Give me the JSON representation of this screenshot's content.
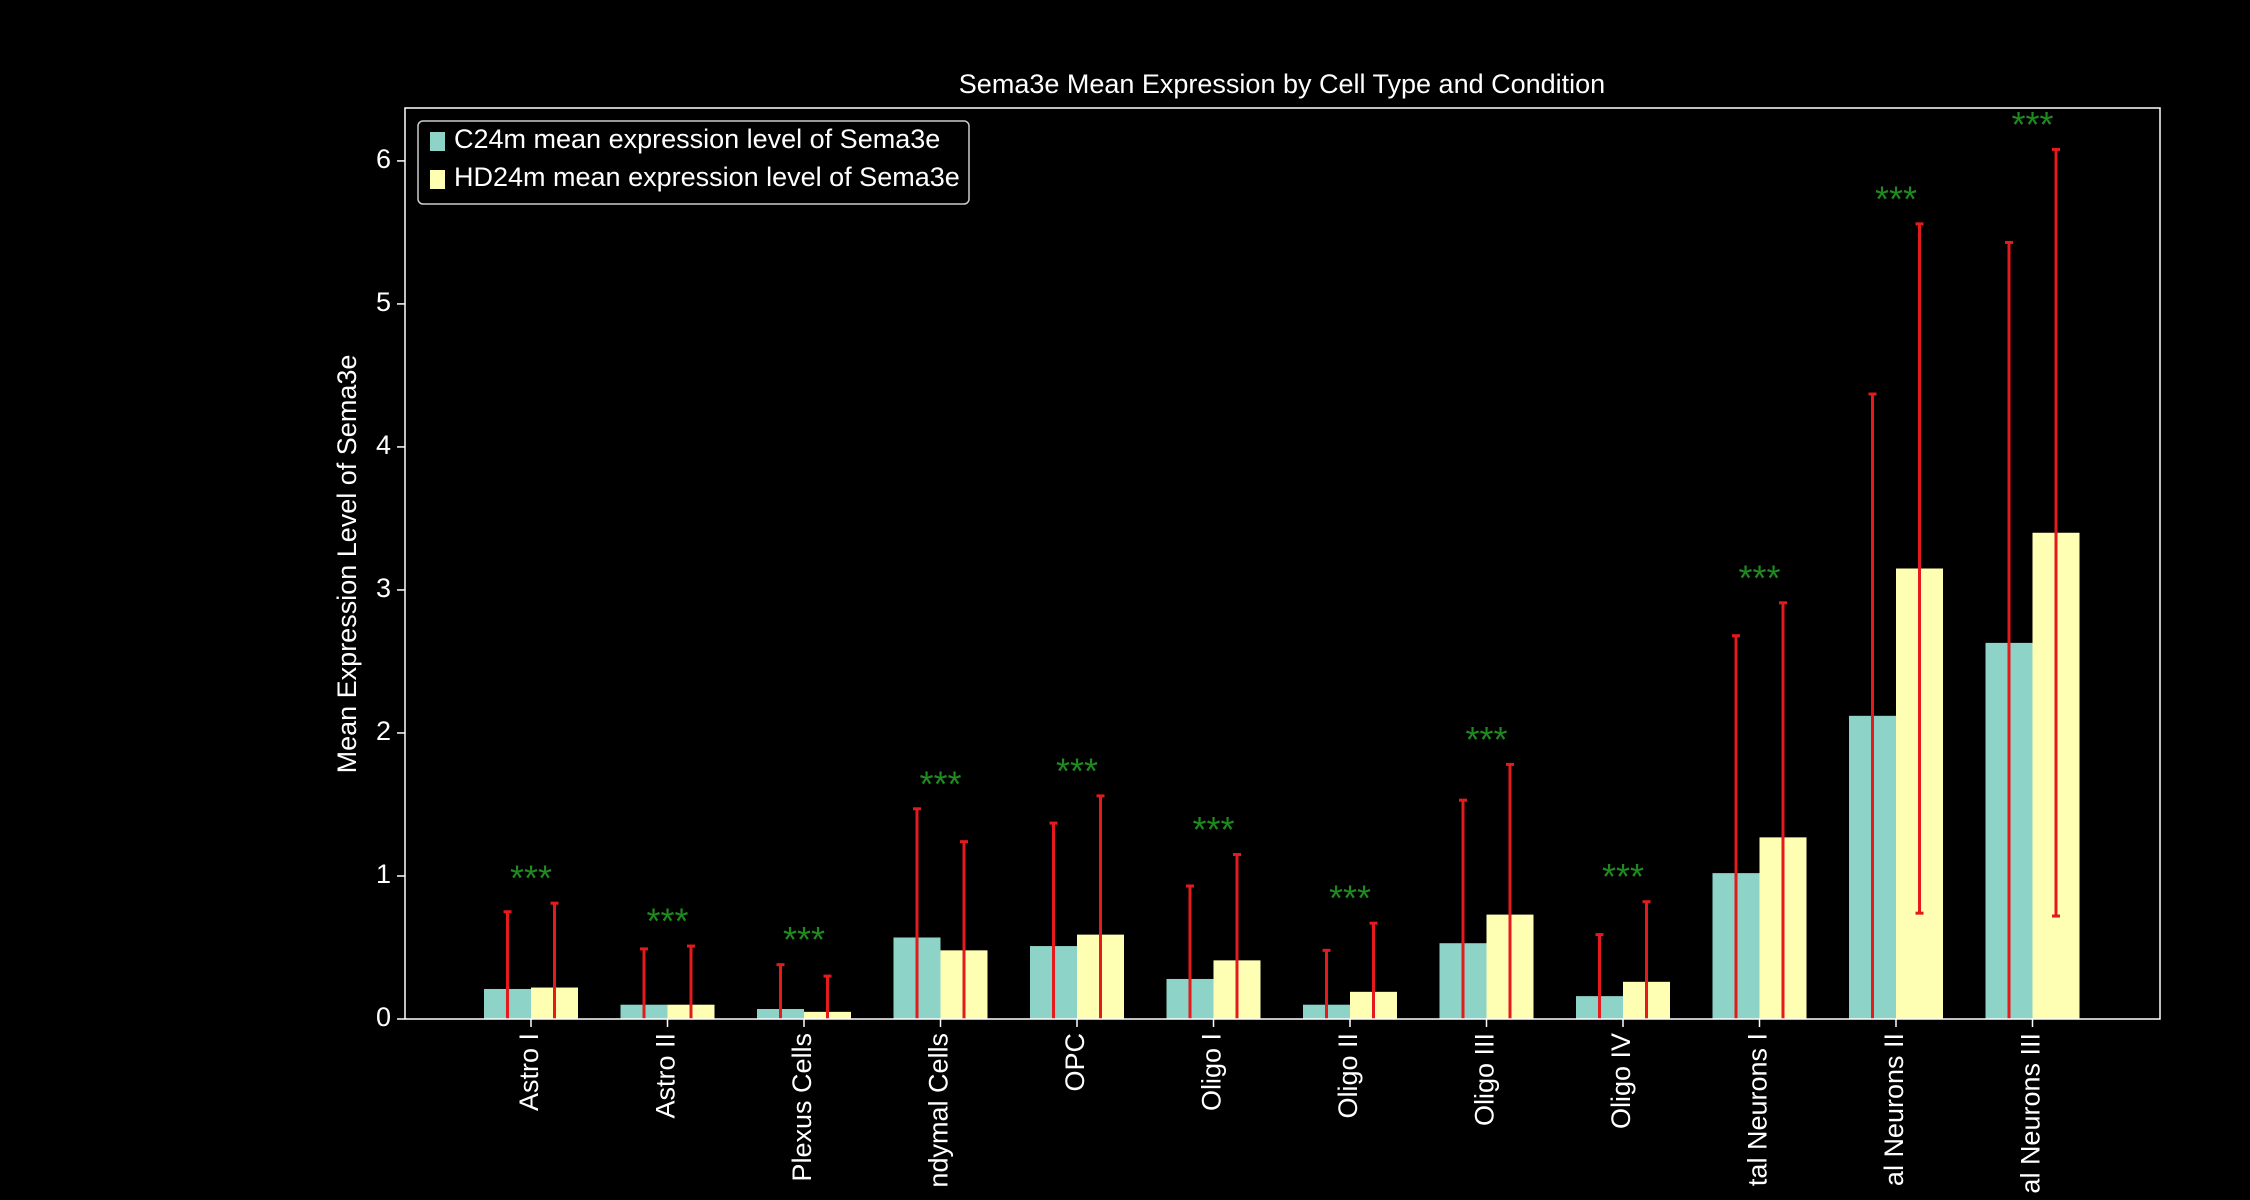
{
  "chart_data": {
    "type": "bar",
    "title": "Sema3e Mean Expression by Cell Type and Condition",
    "y_label": "Mean Expression Level of Sema3e",
    "categories": [
      "Astro I",
      "Astro II",
      "Plexus Cells",
      "ndymal Cells",
      "OPC",
      "Oligo I",
      "Oligo II",
      "Oligo III",
      "Oligo IV",
      "tal Neurons I",
      "al Neurons II",
      "al Neurons III"
    ],
    "series": [
      {
        "name": "C24m mean expression level of Sema3e",
        "color": "#8dd3c7",
        "values": [
          0.21,
          0.1,
          0.07,
          0.57,
          0.51,
          0.28,
          0.1,
          0.53,
          0.16,
          1.02,
          2.12,
          2.63
        ],
        "errors": [
          0.54,
          0.39,
          0.31,
          0.9,
          0.86,
          0.65,
          0.38,
          1.0,
          0.43,
          1.66,
          2.25,
          2.8
        ]
      },
      {
        "name": "HD24m mean expression level of Sema3e",
        "color": "#ffffb3",
        "values": [
          0.22,
          0.1,
          0.05,
          0.48,
          0.59,
          0.41,
          0.19,
          0.73,
          0.26,
          1.27,
          3.15,
          3.4
        ],
        "errors": [
          0.59,
          0.41,
          0.25,
          0.76,
          0.97,
          0.74,
          0.48,
          1.05,
          0.56,
          1.64,
          2.41,
          2.68
        ]
      }
    ],
    "error_color": "#e41a1c",
    "annotations": [
      "***",
      "***",
      "***",
      "***",
      "***",
      "***",
      "***",
      "***",
      "***",
      "***",
      "***",
      "***"
    ],
    "annotation_color": "#1f8a1f",
    "ylim": [
      0,
      6.37
    ],
    "yticks": [
      0,
      1,
      2,
      3,
      4,
      5,
      6
    ],
    "legend": "upper left"
  }
}
